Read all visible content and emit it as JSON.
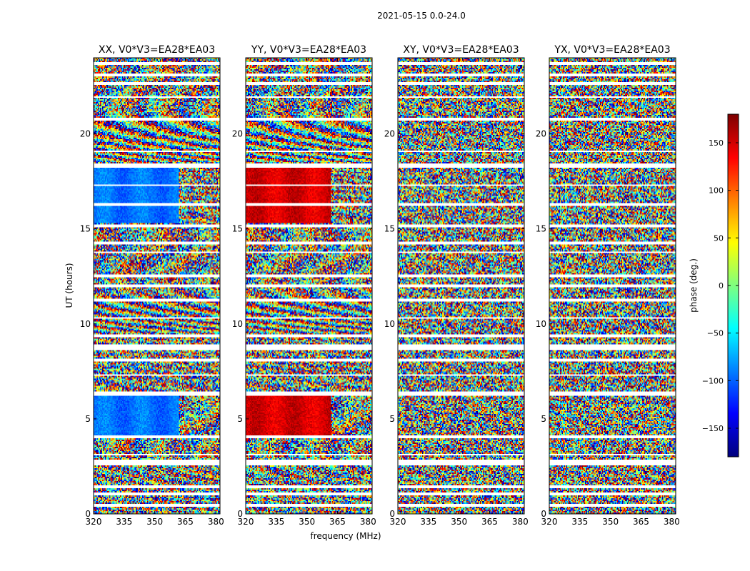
{
  "figure": {
    "suptitle": "2021-05-15 0.0-24.0"
  },
  "chart_data": {
    "type": "heatmap",
    "shared_xlabel": "frequency (MHz)",
    "shared_ylabel": "UT (hours)",
    "xlim": [
      320,
      382
    ],
    "ylim": [
      0,
      24
    ],
    "xticks": [
      320,
      335,
      350,
      365,
      380
    ],
    "yticks": [
      0,
      5,
      10,
      15,
      20
    ],
    "panels": [
      {
        "title": "XX, V0*V3=EA28*EA03",
        "pol": "XX"
      },
      {
        "title": "YY, V0*V3=EA28*EA03",
        "pol": "YY"
      },
      {
        "title": "XY, V0*V3=EA28*EA03",
        "pol": "XY"
      },
      {
        "title": "YX, V0*V3=EA28*EA03",
        "pol": "YX"
      }
    ],
    "flagged_ut_bands": [
      [
        0.4,
        0.5
      ],
      [
        1.0,
        1.1
      ],
      [
        1.35,
        1.5
      ],
      [
        2.55,
        2.85
      ],
      [
        3.05,
        3.12
      ],
      [
        4.0,
        4.15
      ],
      [
        6.2,
        6.45
      ],
      [
        7.3,
        7.38
      ],
      [
        8.05,
        8.15
      ],
      [
        8.6,
        8.9
      ],
      [
        9.3,
        9.42
      ],
      [
        10.25,
        10.35
      ],
      [
        11.2,
        11.3
      ],
      [
        11.9,
        12.05
      ],
      [
        12.45,
        12.6
      ],
      [
        13.7,
        13.8
      ],
      [
        14.2,
        14.3
      ],
      [
        15.1,
        15.2
      ],
      [
        16.2,
        16.35
      ],
      [
        17.25,
        17.35
      ],
      [
        18.25,
        18.45
      ],
      [
        19.05,
        19.15
      ],
      [
        20.7,
        20.85
      ],
      [
        21.9,
        22.0
      ],
      [
        22.6,
        22.7
      ],
      [
        23.05,
        23.2
      ],
      [
        23.6,
        23.75
      ]
    ],
    "colorbar": {
      "label": "phase (deg.)",
      "range": [
        -180,
        180
      ],
      "ticks": [
        -150,
        -100,
        -50,
        0,
        50,
        100,
        150
      ],
      "tick_labels": [
        "−150",
        "−100",
        "−50",
        "0",
        "50",
        "100",
        "150"
      ],
      "colormap": "jet"
    }
  }
}
